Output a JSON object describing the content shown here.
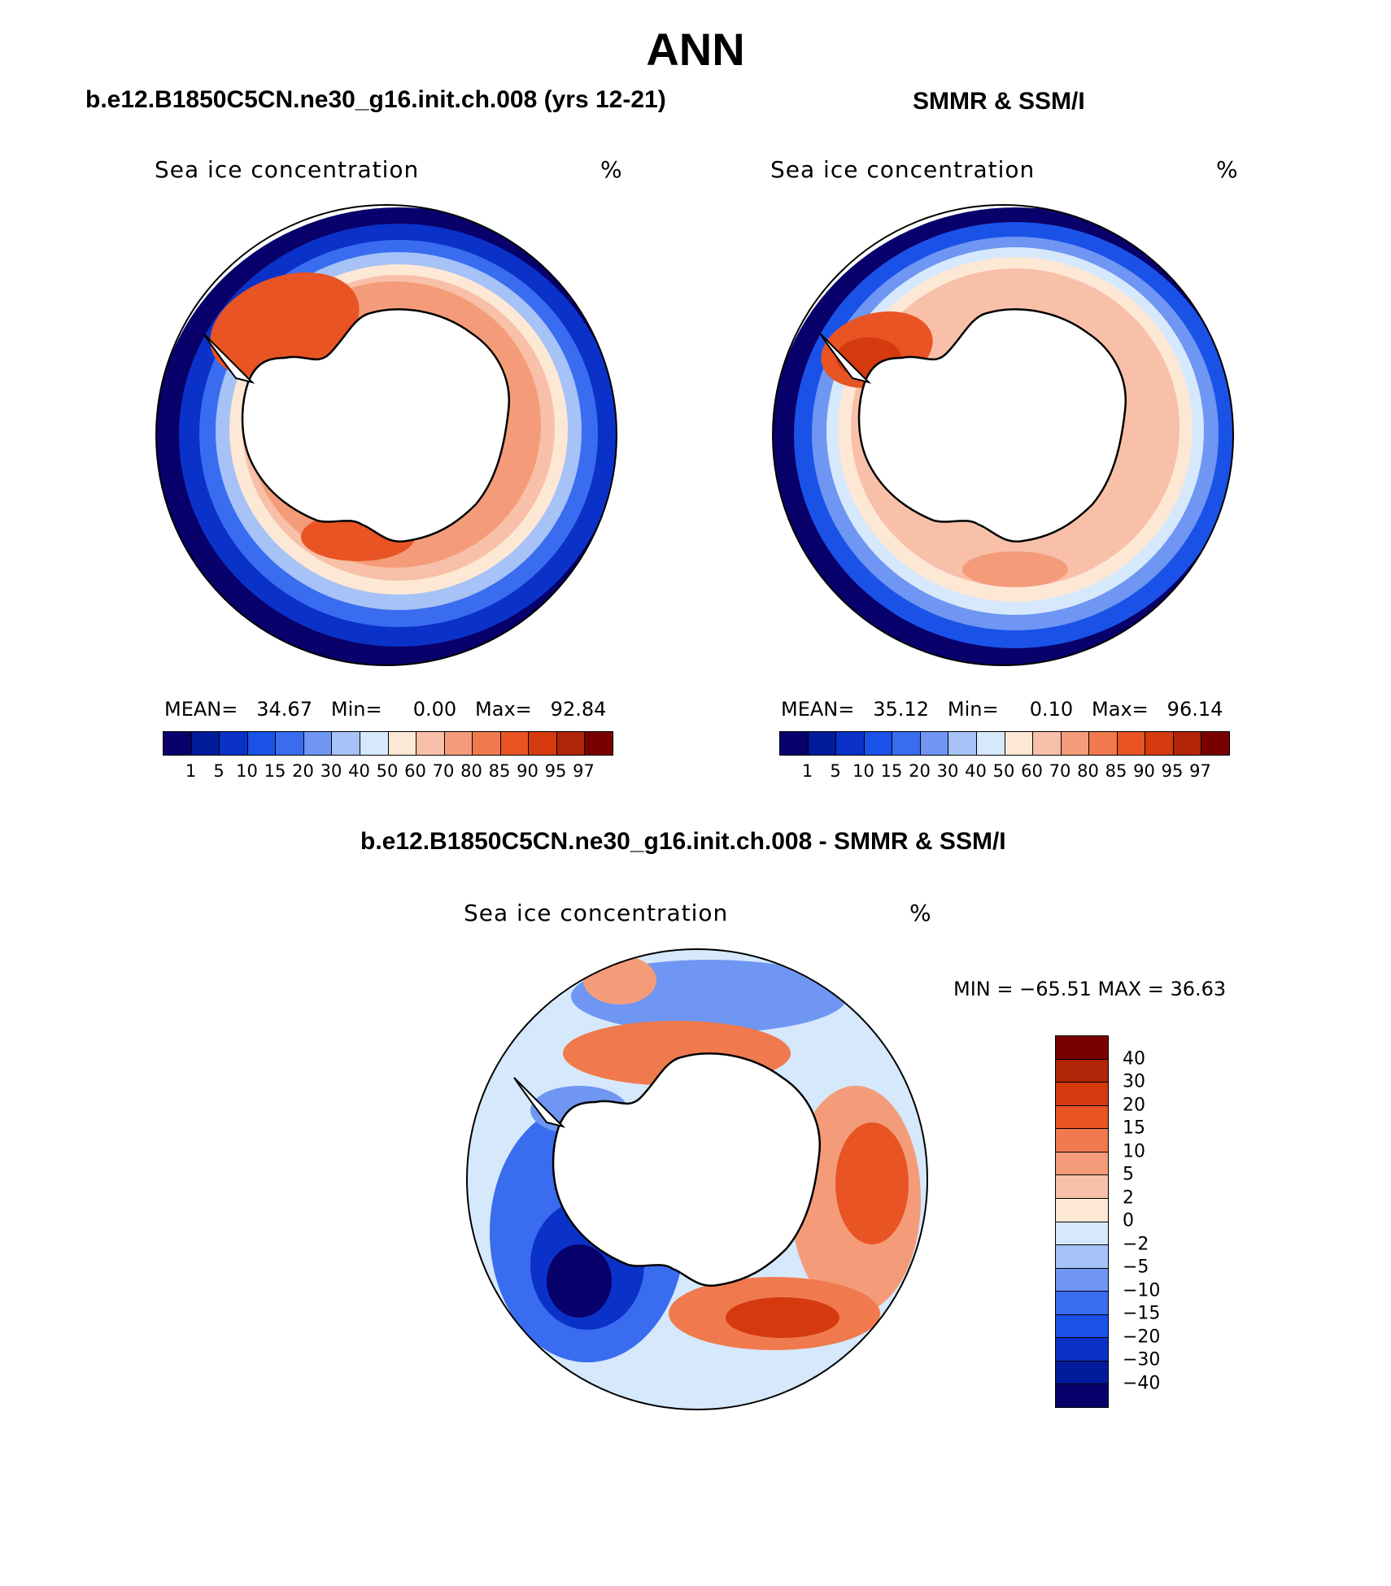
{
  "title": "ANN",
  "panels": [
    {
      "header": "b.e12.B1850C5CN.ne30_g16.init.ch.008 (yrs 12-21)",
      "variable": "Sea ice concentration",
      "units": "%",
      "stats": {
        "mean_label": "MEAN=",
        "mean": "34.67",
        "min_label": "Min=",
        "min": "0.00",
        "max_label": "Max=",
        "max": "92.84"
      },
      "colorbar_ticks": [
        "1",
        "5",
        "10",
        "15",
        "20",
        "30",
        "40",
        "50",
        "60",
        "70",
        "80",
        "85",
        "90",
        "95",
        "97"
      ]
    },
    {
      "header": "SMMR & SSM/I",
      "variable": "Sea ice concentration",
      "units": "%",
      "stats": {
        "mean_label": "MEAN=",
        "mean": "35.12",
        "min_label": "Min=",
        "min": "0.10",
        "max_label": "Max=",
        "max": "96.14"
      },
      "colorbar_ticks": [
        "1",
        "5",
        "10",
        "15",
        "20",
        "30",
        "40",
        "50",
        "60",
        "70",
        "80",
        "85",
        "90",
        "95",
        "97"
      ]
    }
  ],
  "diff_panel": {
    "header": "b.e12.B1850C5CN.ne30_g16.init.ch.008 - SMMR & SSM/I",
    "variable": "Sea ice concentration",
    "units": "%",
    "minmax_text": "MIN = −65.51  MAX =   36.63",
    "colorbar_ticks": [
      "40",
      "30",
      "20",
      "15",
      "10",
      "5",
      "2",
      "0",
      "−2",
      "−5",
      "−10",
      "−15",
      "−20",
      "−30",
      "−40"
    ]
  },
  "colors": {
    "abs_scale": [
      "#08006b",
      "#001b9c",
      "#0a32c8",
      "#1a52e8",
      "#3a6cf0",
      "#6e96f2",
      "#a6c2f6",
      "#d6e8fb",
      "#fde8d6",
      "#f8c0a8",
      "#f49c7a",
      "#f07a4e",
      "#e85424",
      "#d43a0e",
      "#b02408",
      "#7a0000"
    ],
    "diff_scale": [
      "#7a0000",
      "#b02408",
      "#d43a0e",
      "#e85424",
      "#f07a4e",
      "#f49c7a",
      "#f8c0a8",
      "#fde8d6",
      "#d6e8fb",
      "#a6c2f6",
      "#6e96f2",
      "#3a6cf0",
      "#1a52e8",
      "#0a32c8",
      "#001b9c",
      "#08006b"
    ]
  },
  "chart_data": [
    {
      "type": "heatmap",
      "title": "b.e12.B1850C5CN.ne30_g16.init.ch.008 (yrs 12-21)",
      "variable": "Sea ice concentration",
      "units": "%",
      "projection": "south polar stereographic",
      "levels": [
        1,
        5,
        10,
        15,
        20,
        30,
        40,
        50,
        60,
        70,
        80,
        85,
        90,
        95,
        97
      ],
      "mean": 34.67,
      "min": 0.0,
      "max": 92.84
    },
    {
      "type": "heatmap",
      "title": "SMMR & SSM/I",
      "variable": "Sea ice concentration",
      "units": "%",
      "projection": "south polar stereographic",
      "levels": [
        1,
        5,
        10,
        15,
        20,
        30,
        40,
        50,
        60,
        70,
        80,
        85,
        90,
        95,
        97
      ],
      "mean": 35.12,
      "min": 0.1,
      "max": 96.14
    },
    {
      "type": "heatmap",
      "title": "b.e12.B1850C5CN.ne30_g16.init.ch.008 - SMMR & SSM/I",
      "variable": "Sea ice concentration",
      "units": "%",
      "projection": "south polar stereographic",
      "levels": [
        -40,
        -30,
        -20,
        -15,
        -10,
        -5,
        -2,
        0,
        2,
        5,
        10,
        15,
        20,
        30,
        40
      ],
      "min": -65.51,
      "max": 36.63
    }
  ]
}
